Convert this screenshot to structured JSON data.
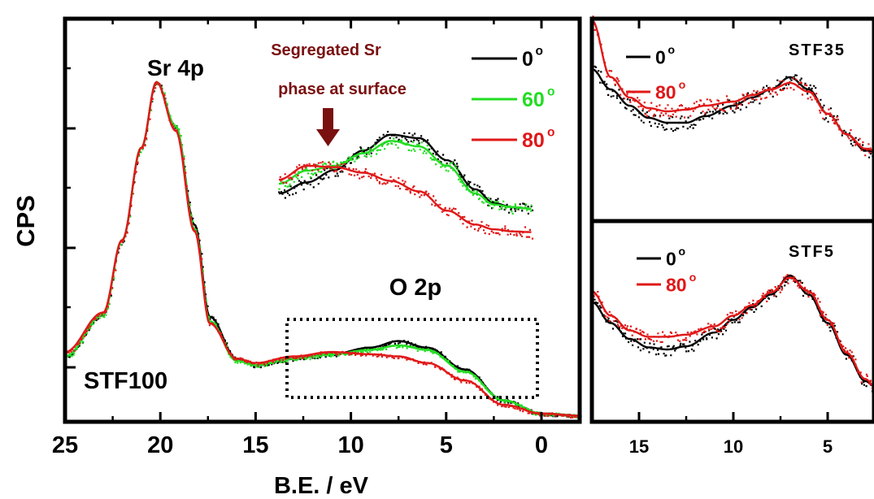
{
  "chart_data": [
    {
      "type": "line",
      "panel": "main",
      "ylabel": "CPS",
      "xlabel": "B.E. / eV",
      "x_reversed": true,
      "xlim": [
        25,
        -2
      ],
      "xticks": [
        "25",
        "20",
        "15",
        "10",
        "5",
        "0"
      ],
      "sample_label": "STF100",
      "peak_label": "Sr 4p",
      "region_label": "O 2p",
      "annotation": [
        "Segregated Sr",
        "phase at surface"
      ],
      "annotation_x": 11,
      "legend": [
        {
          "name": "0",
          "color": "#000000"
        },
        {
          "name": "60",
          "color": "#22dd22"
        },
        {
          "name": "80",
          "color": "#e01818"
        }
      ],
      "legend_unit": "o",
      "series": [
        {
          "name": "0",
          "color": "#000000",
          "x": [
            25,
            23,
            22,
            21,
            20.2,
            19.2,
            18.2,
            17.4,
            16,
            15,
            13,
            11,
            9,
            7.5,
            6,
            4,
            2,
            0,
            -2
          ],
          "y": [
            5,
            24,
            58,
            100,
            130,
            110,
            65,
            23,
            4,
            1,
            4,
            6,
            9,
            12,
            9,
            -1,
            -15,
            -21,
            -22
          ]
        },
        {
          "name": "60",
          "color": "#22dd22",
          "x": [
            25,
            23,
            22,
            21,
            20.2,
            19.2,
            18.2,
            17.4,
            16,
            15,
            13,
            11,
            9,
            7.5,
            6,
            4,
            2,
            0,
            -2
          ],
          "y": [
            5,
            24,
            58,
            100,
            130,
            110,
            63,
            21,
            3,
            1,
            4,
            6,
            8,
            10,
            8,
            -2,
            -15,
            -21,
            -22
          ]
        },
        {
          "name": "80",
          "color": "#e01818",
          "x": [
            25,
            23,
            22,
            21,
            20.2,
            19.2,
            18.2,
            17.4,
            16,
            15,
            13,
            11,
            9,
            7.5,
            6,
            4,
            2,
            0,
            -2
          ],
          "y": [
            7,
            25,
            58,
            100,
            130,
            108,
            62,
            20,
            4,
            2,
            5,
            7,
            6,
            5,
            2,
            -6,
            -17,
            -21,
            -22
          ]
        }
      ],
      "inset": {
        "xlim": [
          13.5,
          0
        ],
        "series": [
          {
            "name": "0",
            "x": [
              13.5,
              12,
              10.5,
              9,
              7.5,
              6,
              4.5,
              3,
              2,
              1,
              0
            ],
            "y": [
              0,
              0.16,
              0.34,
              0.62,
              0.85,
              0.8,
              0.48,
              0.06,
              -0.14,
              -0.2,
              -0.22
            ]
          },
          {
            "name": "60",
            "x": [
              13.5,
              12,
              10.5,
              9,
              7.5,
              6,
              4.5,
              3,
              2,
              1,
              0
            ],
            "y": [
              0.14,
              0.33,
              0.4,
              0.58,
              0.76,
              0.68,
              0.4,
              0.0,
              -0.16,
              -0.2,
              -0.22
            ]
          },
          {
            "name": "80",
            "x": [
              13.5,
              12,
              10.5,
              9,
              7.5,
              6,
              4.5,
              3,
              2,
              1,
              0
            ],
            "y": [
              0.2,
              0.4,
              0.38,
              0.3,
              0.18,
              0.03,
              -0.25,
              -0.45,
              -0.52,
              -0.55,
              -0.56
            ]
          }
        ]
      }
    },
    {
      "type": "line",
      "panel": "top-right",
      "sample_label": "STF35",
      "x_reversed": true,
      "xlim": [
        17.5,
        2.5
      ],
      "legend": [
        {
          "name": "0",
          "color": "#000000"
        },
        {
          "name": "80",
          "color": "#e01818"
        }
      ],
      "legend_unit": "o",
      "series": [
        {
          "name": "0",
          "color": "#000000",
          "x": [
            17.5,
            16.5,
            15.5,
            14.5,
            13.5,
            12.5,
            11.5,
            10,
            9,
            8,
            7,
            6,
            5,
            4,
            3,
            2.5
          ],
          "y": [
            80,
            55,
            35,
            20,
            14,
            14,
            22,
            35,
            45,
            55,
            70,
            55,
            25,
            0,
            -20,
            -22
          ]
        },
        {
          "name": "80",
          "color": "#e01818",
          "x": [
            17.5,
            16.5,
            15.5,
            14.5,
            13.5,
            12.5,
            11.5,
            10,
            9,
            8,
            7,
            6,
            5,
            4,
            3,
            2.5
          ],
          "y": [
            140,
            70,
            45,
            32,
            28,
            30,
            35,
            40,
            48,
            55,
            63,
            52,
            25,
            0,
            -18,
            -20
          ]
        }
      ]
    },
    {
      "type": "line",
      "panel": "bottom-right",
      "sample_label": "STF5",
      "x_reversed": true,
      "xlim": [
        17.5,
        2.5
      ],
      "xticks": [
        "15",
        "10",
        "5"
      ],
      "xlabel": "",
      "legend": [
        {
          "name": "0",
          "color": "#000000"
        },
        {
          "name": "80",
          "color": "#e01818"
        }
      ],
      "legend_unit": "o",
      "series": [
        {
          "name": "0",
          "color": "#000000",
          "x": [
            17.5,
            16.5,
            15.5,
            14.5,
            13.5,
            12.5,
            11,
            10,
            9,
            8,
            7,
            6,
            5,
            4,
            3,
            2.5
          ],
          "y": [
            45,
            25,
            10,
            2,
            0,
            3,
            16,
            28,
            40,
            52,
            70,
            52,
            25,
            -5,
            -30,
            -35
          ]
        },
        {
          "name": "80",
          "color": "#e01818",
          "x": [
            17.5,
            16.5,
            15.5,
            14.5,
            13.5,
            12.5,
            11,
            10,
            9,
            8,
            7,
            6,
            5,
            4,
            3,
            2.5
          ],
          "y": [
            55,
            32,
            18,
            12,
            12,
            14,
            22,
            32,
            42,
            54,
            68,
            55,
            28,
            -3,
            -28,
            -35
          ]
        }
      ]
    }
  ]
}
